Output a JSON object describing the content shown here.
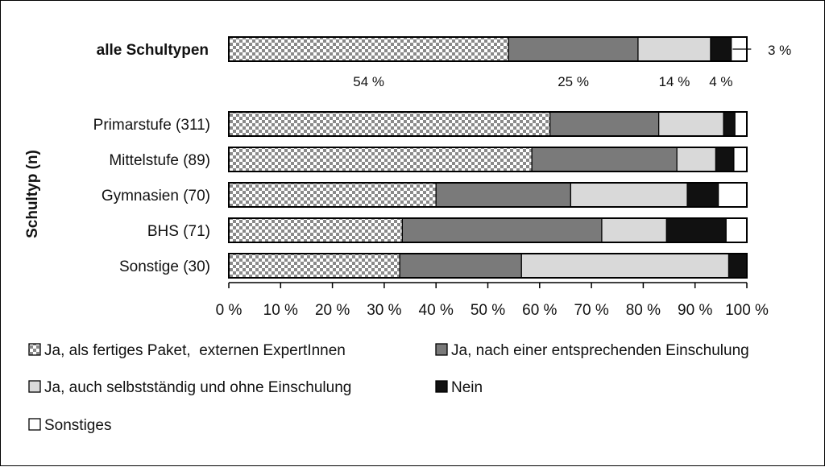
{
  "chart_data": {
    "type": "bar",
    "subtype": "stacked-horizontal-100-percent",
    "ylabel": "Schultyp (n)",
    "xlabel": "",
    "xlim": [
      0,
      100
    ],
    "x_ticks": [
      "0 %",
      "10 %",
      "20 %",
      "30 %",
      "40 %",
      "50 %",
      "60 %",
      "70 %",
      "80 %",
      "90 %",
      "100 %"
    ],
    "categories": [
      "alle Schultypen",
      "Primarstufe (311)",
      "Mittelstufe (89)",
      "Gymnasien (70)",
      "BHS (71)",
      "Sonstige (30)"
    ],
    "series": [
      {
        "name": "Ja, als fertiges Paket,  externen ExpertInnen",
        "values": [
          54,
          62,
          58.5,
          40,
          33.5,
          33
        ],
        "pattern": "checker"
      },
      {
        "name": "Ja, nach einer entsprechenden Einschulung",
        "values": [
          25,
          21,
          28,
          26,
          38.5,
          23.5
        ],
        "color": "#7a7a7a"
      },
      {
        "name": "Ja, auch selbstständig und ohne Einschulung",
        "values": [
          14,
          12.5,
          7.5,
          22.5,
          12.5,
          40
        ],
        "color": "#d9d9d9"
      },
      {
        "name": "Nein",
        "values": [
          4,
          2.2,
          3.5,
          6,
          11.5,
          3.5
        ],
        "color": "#111111"
      },
      {
        "name": "Sonstiges",
        "values": [
          3,
          2.3,
          2.5,
          5.5,
          4,
          0
        ],
        "color": "#ffffff"
      }
    ],
    "highlight_labels": [
      "54 %",
      "25 %",
      "14 %",
      "4 %",
      "3 %"
    ],
    "legend_position": "bottom",
    "grid": false
  }
}
